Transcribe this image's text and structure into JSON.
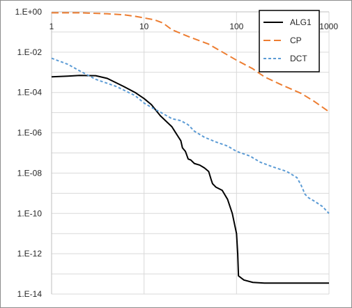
{
  "chart_data": {
    "type": "line",
    "title": "",
    "xlabel": "",
    "ylabel": "",
    "x_scale": "log",
    "y_scale": "log",
    "xlim": [
      1,
      1000
    ],
    "ylim": [
      1e-14,
      1
    ],
    "x_ticks": [
      {
        "value": 1,
        "label": "1"
      },
      {
        "value": 10,
        "label": "10"
      },
      {
        "value": 100,
        "label": "100"
      },
      {
        "value": 1000,
        "label": "1000"
      }
    ],
    "y_ticks": [
      {
        "value": 1,
        "label": "1.E+00"
      },
      {
        "value": 0.01,
        "label": "1.E-02"
      },
      {
        "value": 0.0001,
        "label": "1.E-04"
      },
      {
        "value": 1e-06,
        "label": "1.E-06"
      },
      {
        "value": 1e-08,
        "label": "1.E-08"
      },
      {
        "value": 1e-10,
        "label": "1.E-10"
      },
      {
        "value": 1e-12,
        "label": "1.E-12"
      },
      {
        "value": 1e-14,
        "label": "1.E-14"
      }
    ],
    "grid": {
      "x": true,
      "y": true
    },
    "legend_position": "top-right",
    "series": [
      {
        "name": "ALG1",
        "color": "#000000",
        "dash": "solid",
        "points": [
          [
            1,
            0.0006
          ],
          [
            1.5,
            0.00065
          ],
          [
            2,
            0.0007
          ],
          [
            3,
            0.00068
          ],
          [
            4,
            0.0005
          ],
          [
            6,
            0.0002
          ],
          [
            8,
            0.0001
          ],
          [
            10,
            5e-05
          ],
          [
            12,
            2.5e-05
          ],
          [
            15,
            7e-06
          ],
          [
            20,
            2e-06
          ],
          [
            22,
            1e-06
          ],
          [
            25,
            4e-07
          ],
          [
            26,
            1.8e-07
          ],
          [
            28,
            1.2e-07
          ],
          [
            30,
            5e-08
          ],
          [
            32,
            4.5e-08
          ],
          [
            35,
            3e-08
          ],
          [
            40,
            2.5e-08
          ],
          [
            45,
            1.8e-08
          ],
          [
            50,
            1.2e-08
          ],
          [
            53,
            5e-09
          ],
          [
            55,
            3e-09
          ],
          [
            60,
            2e-09
          ],
          [
            70,
            1.4e-09
          ],
          [
            80,
            5e-10
          ],
          [
            90,
            1e-10
          ],
          [
            100,
            1e-11
          ],
          [
            103,
            1e-12
          ],
          [
            105,
            8e-14
          ],
          [
            120,
            5e-14
          ],
          [
            150,
            3.8e-14
          ],
          [
            200,
            3.5e-14
          ],
          [
            1000,
            3.5e-14
          ]
        ]
      },
      {
        "name": "CP",
        "color": "#ed7d31",
        "dash": "long-dash",
        "points": [
          [
            1,
            0.9
          ],
          [
            2,
            0.9
          ],
          [
            4,
            0.8
          ],
          [
            6,
            0.72
          ],
          [
            8,
            0.6
          ],
          [
            10,
            0.5
          ],
          [
            13,
            0.4
          ],
          [
            16,
            0.28
          ],
          [
            20,
            0.13
          ],
          [
            30,
            0.06
          ],
          [
            50,
            0.025
          ],
          [
            100,
            0.004
          ],
          [
            150,
            0.0015
          ],
          [
            200,
            0.0006
          ],
          [
            300,
            0.00025
          ],
          [
            500,
            9e-05
          ],
          [
            700,
            3.5e-05
          ],
          [
            1000,
            1.1e-05
          ]
        ]
      },
      {
        "name": "DCT",
        "color": "#5b9bd5",
        "dash": "short-dash",
        "points": [
          [
            1,
            0.005
          ],
          [
            1.5,
            0.0025
          ],
          [
            2,
            0.0012
          ],
          [
            3,
            0.00045
          ],
          [
            5,
            0.0002
          ],
          [
            8,
            7e-05
          ],
          [
            10,
            3e-05
          ],
          [
            13,
            1.5e-05
          ],
          [
            16,
            9e-06
          ],
          [
            20,
            5e-06
          ],
          [
            25,
            4e-06
          ],
          [
            30,
            2.5e-06
          ],
          [
            35,
            1.2e-06
          ],
          [
            45,
            6e-07
          ],
          [
            60,
            3.5e-07
          ],
          [
            80,
            2.2e-07
          ],
          [
            100,
            1.2e-07
          ],
          [
            140,
            7e-08
          ],
          [
            180,
            3.5e-08
          ],
          [
            250,
            2e-08
          ],
          [
            350,
            1.2e-08
          ],
          [
            450,
            6e-09
          ],
          [
            500,
            2.5e-09
          ],
          [
            550,
            9e-10
          ],
          [
            600,
            6e-10
          ],
          [
            700,
            4e-10
          ],
          [
            850,
            2.2e-10
          ],
          [
            1000,
            1e-10
          ]
        ]
      }
    ]
  }
}
